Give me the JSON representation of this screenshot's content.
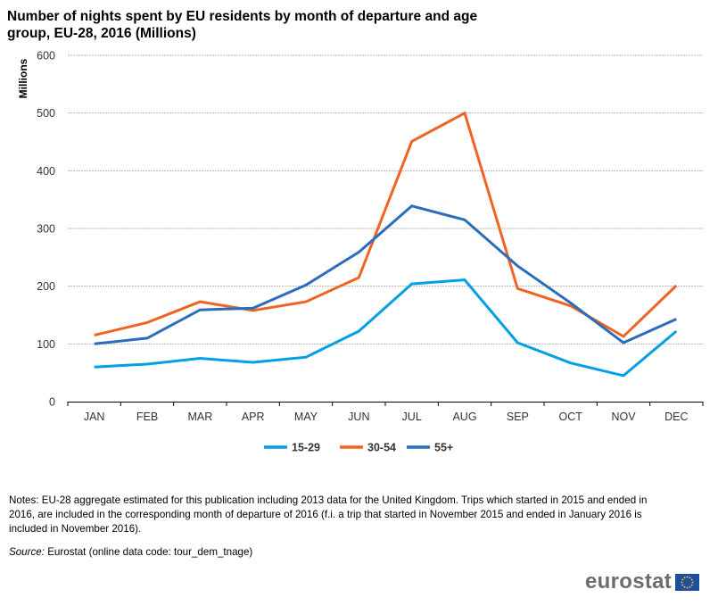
{
  "title": "Number of nights spent by EU residents by month of departure and age group, EU-28, 2016 (Millions)",
  "notes": "Notes: EU-28 aggregate estimated for this publication including 2013 data for the United Kingdom. Trips which started in 2015 and ended in 2016, are included in the corresponding month of departure of 2016 (f.i. a trip that started in November 2015 and ended in January 2016 is included in November 2016).",
  "source": {
    "label": "Source:",
    "text": "Eurostat (online data code: tour_dem_tnage)"
  },
  "logo": {
    "text": "eurostat",
    "icon": "eu-flag-icon"
  },
  "chart_data": {
    "type": "line",
    "title": "Number of nights spent by EU residents by month of departure and age group, EU-28, 2016 (Millions)",
    "xlabel": "",
    "ylabel": "Millions",
    "ylim": [
      0,
      600
    ],
    "yticks": [
      0,
      100,
      200,
      300,
      400,
      500,
      600
    ],
    "grid": true,
    "legend_position": "bottom-center",
    "categories": [
      "JAN",
      "FEB",
      "MAR",
      "APR",
      "MAY",
      "JUN",
      "JUL",
      "AUG",
      "SEP",
      "OCT",
      "NOV",
      "DEC"
    ],
    "series": [
      {
        "name": "15-29",
        "color": "#00a1e4",
        "values": [
          60,
          65,
          75,
          68,
          77,
          122,
          204,
          211,
          102,
          67,
          45,
          122
        ]
      },
      {
        "name": "30-54",
        "color": "#f06423",
        "values": [
          115,
          137,
          173,
          158,
          173,
          215,
          451,
          500,
          196,
          166,
          113,
          201
        ]
      },
      {
        "name": "55+",
        "color": "#2a6ebb",
        "values": [
          100,
          110,
          159,
          162,
          202,
          259,
          339,
          315,
          235,
          171,
          102,
          143
        ]
      }
    ]
  }
}
